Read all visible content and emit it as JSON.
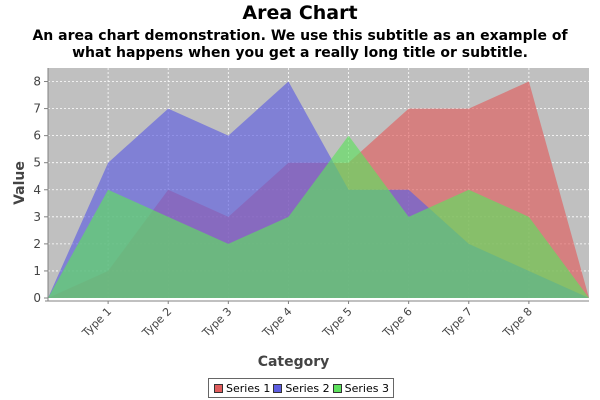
{
  "chart_data": {
    "type": "area",
    "title": "Area Chart",
    "subtitle": "An area chart demonstration.  We use this subtitle as an example of what happens when you get a really long title or subtitle.",
    "xlabel": "Category",
    "ylabel": "Value",
    "categories": [
      "Type 1",
      "Type 2",
      "Type 3",
      "Type 4",
      "Type 5",
      "Type 6",
      "Type 7",
      "Type 8"
    ],
    "ylim": [
      0,
      8.5
    ],
    "yticks": [
      0,
      1,
      2,
      3,
      4,
      5,
      6,
      7,
      8
    ],
    "grid": true,
    "legend_position": "bottom",
    "series": [
      {
        "name": "Series 1",
        "color": "#e05d5d",
        "values": [
          1,
          4,
          3,
          5,
          5,
          7,
          7,
          8
        ]
      },
      {
        "name": "Series 2",
        "color": "#5d5de0",
        "values": [
          5,
          7,
          6,
          8,
          4,
          4,
          2,
          1
        ]
      },
      {
        "name": "Series 3",
        "color": "#5de05d",
        "values": [
          4,
          3,
          2,
          3,
          6,
          3,
          4,
          3
        ]
      }
    ],
    "plot_background": "#c0c0c0"
  }
}
